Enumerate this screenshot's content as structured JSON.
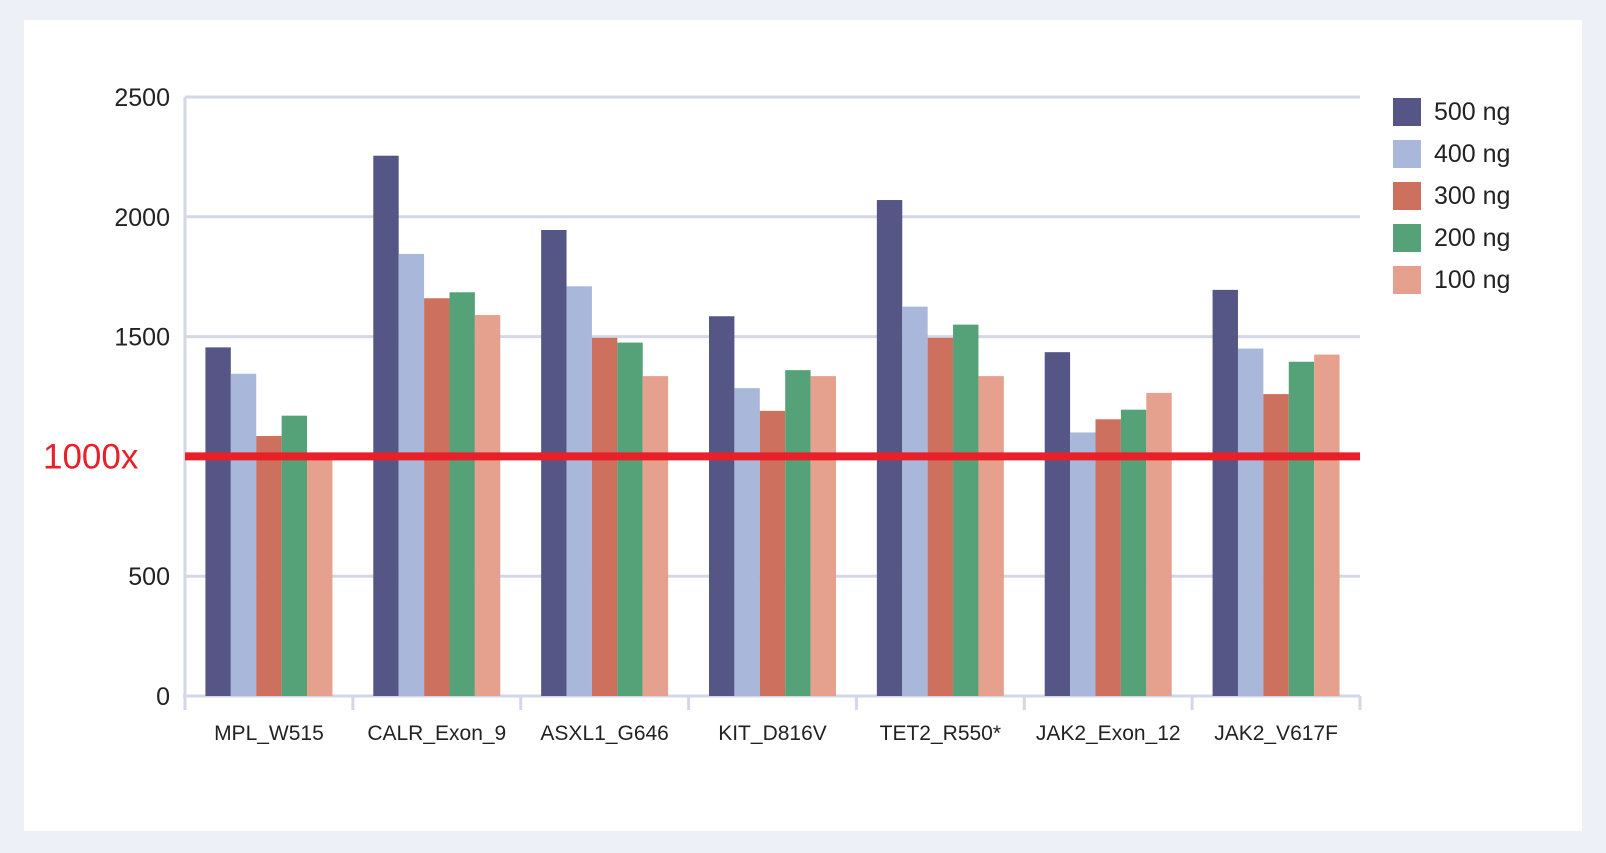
{
  "chart_data": {
    "type": "bar",
    "title": "",
    "xlabel": "",
    "ylabel": "",
    "ylim": [
      0,
      2500
    ],
    "yticks": [
      0,
      500,
      1500,
      2000,
      2500
    ],
    "grid": true,
    "legend_position": "right",
    "categories": [
      "MPL_W515",
      "CALR_Exon_9",
      "ASXL1_G646",
      "KIT_D816V",
      "TET2_R550*",
      "JAK2_Exon_12",
      "JAK2_V617F"
    ],
    "series": [
      {
        "name": "500 ng",
        "color": "#565686",
        "values": [
          1455,
          2255,
          1945,
          1585,
          2070,
          1435,
          1695
        ]
      },
      {
        "name": "400 ng",
        "color": "#a9b8da",
        "values": [
          1345,
          1845,
          1710,
          1285,
          1625,
          1100,
          1450
        ]
      },
      {
        "name": "300 ng",
        "color": "#cd705e",
        "values": [
          1085,
          1660,
          1495,
          1190,
          1495,
          1155,
          1260
        ]
      },
      {
        "name": "200 ng",
        "color": "#56a278",
        "values": [
          1170,
          1685,
          1475,
          1360,
          1550,
          1195,
          1395
        ]
      },
      {
        "name": "100 ng",
        "color": "#e5a08e",
        "values": [
          1000,
          1590,
          1335,
          1335,
          1335,
          1265,
          1425
        ]
      }
    ],
    "reference_line": {
      "value": 1000,
      "label": "1000x",
      "color": "#e8202a"
    }
  }
}
